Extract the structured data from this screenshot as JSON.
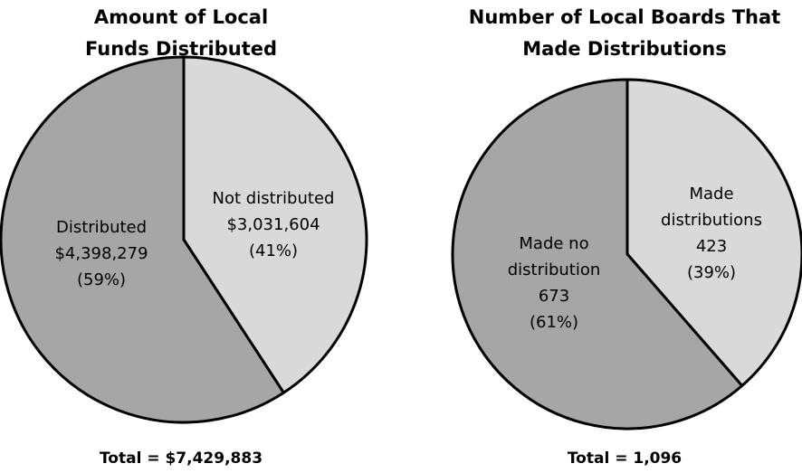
{
  "chart_data": [
    {
      "type": "pie",
      "title": [
        "Amount of Local",
        "Funds Distributed"
      ],
      "categories": [
        [
          "Not distributed"
        ],
        [
          "Distributed"
        ]
      ],
      "values": [
        3031604,
        4398279
      ],
      "value_labels": [
        "$3,031,604",
        "$4,398,279"
      ],
      "percent_labels": [
        "(41%)",
        "(59%)"
      ],
      "colors": [
        "#d9d9d9",
        "#a6a6a6"
      ],
      "note": "Total = $7,429,883"
    },
    {
      "type": "pie",
      "title": [
        "Number of Local Boards That",
        "Made Distributions"
      ],
      "categories": [
        [
          "Made",
          "distributions"
        ],
        [
          "Made no",
          "distribution"
        ]
      ],
      "values": [
        423,
        673
      ],
      "percent_labels": [
        "(39%)",
        "(61%)"
      ],
      "colors": [
        "#d9d9d9",
        "#a6a6a6"
      ],
      "note": "Total = 1,096"
    }
  ]
}
